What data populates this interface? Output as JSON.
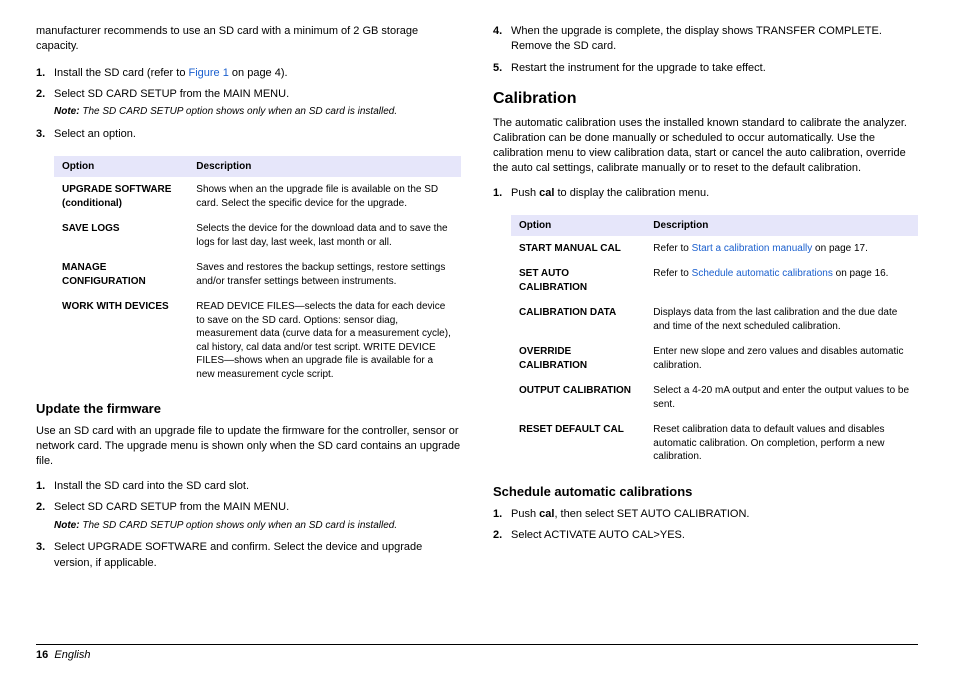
{
  "colors": {
    "table_header_bg": "#e6e6fa",
    "link": "#1a5fce"
  },
  "left": {
    "intro": "manufacturer recommends to use an SD card with a minimum of 2 GB storage capacity.",
    "list1": {
      "i1_pre": "Install the SD card (refer to ",
      "i1_link": "Figure 1",
      "i1_post": " on page 4).",
      "i2": "Select SD CARD SETUP from the MAIN MENU.",
      "note_label": "Note:",
      "note_text": " The SD CARD SETUP option shows only when an SD card is installed.",
      "i3": "Select an option."
    },
    "table1": {
      "h1": "Option",
      "h2": "Description",
      "r1o": "UPGRADE SOFTWARE (conditional)",
      "r1d": "Shows when an the upgrade file is available on the SD card. Select the specific device for the upgrade.",
      "r2o": "SAVE LOGS",
      "r2d": "Selects the device for the download data and to save the logs for last day, last week, last month or all.",
      "r3o": "MANAGE CONFIGURATION",
      "r3d": "Saves and restores the backup settings, restore settings and/or transfer settings between instruments.",
      "r4o": "WORK WITH DEVICES",
      "r4d": "READ DEVICE FILES—selects the data for each device to save on the SD card. Options: sensor diag, measurement data (curve data for a measurement cycle), cal history, cal data and/or test script. WRITE DEVICE FILES—shows when an upgrade file is available for a new measurement cycle script."
    },
    "h2a": "Update the firmware",
    "p2": "Use an SD card with an upgrade file to update the firmware for the controller, sensor or network card. The upgrade menu is shown only when the SD card contains an upgrade file.",
    "list2": {
      "i1": "Install the SD card into the SD card slot.",
      "i2": "Select SD CARD SETUP from the MAIN MENU.",
      "note_label": "Note:",
      "note_text": " The SD CARD SETUP option shows only when an SD card is installed.",
      "i3": "Select UPGRADE SOFTWARE and confirm. Select the device and upgrade version, if applicable."
    }
  },
  "right": {
    "list1": {
      "i4": "When the upgrade is complete, the display shows TRANSFER COMPLETE. Remove the SD card.",
      "i5": "Restart the instrument for the upgrade to take effect."
    },
    "h1": "Calibration",
    "p1": "The automatic calibration uses the installed known standard to calibrate the analyzer. Calibration can be done manually or scheduled to occur automatically. Use the calibration menu to view calibration data, start or cancel the auto calibration, override the auto cal settings, calibrate manually or to reset to the default calibration.",
    "list2": {
      "i1_pre": "Push ",
      "i1_b": "cal",
      "i1_post": " to display the calibration menu."
    },
    "table2": {
      "h1": "Option",
      "h2": "Description",
      "r1o": "START MANUAL CAL",
      "r1d_pre": "Refer to ",
      "r1d_link": "Start a calibration manually",
      "r1d_post": " on page 17.",
      "r2o": "SET AUTO CALIBRATION",
      "r2d_pre": "Refer to ",
      "r2d_link": "Schedule automatic calibrations",
      "r2d_post": " on page 16.",
      "r3o": "CALIBRATION DATA",
      "r3d": "Displays data from the last calibration and the due date and time of the next scheduled calibration.",
      "r4o": "OVERRIDE CALIBRATION",
      "r4d": "Enter new slope and zero values and disables automatic calibration.",
      "r5o": "OUTPUT CALIBRATION",
      "r5d": "Select a 4-20 mA output and enter the output values to be sent.",
      "r6o": "RESET DEFAULT CAL",
      "r6d": "Reset calibration data to default values and disables automatic calibration. On completion, perform a new calibration."
    },
    "h2b": "Schedule automatic calibrations",
    "list3": {
      "i1_pre": "Push ",
      "i1_b": "cal",
      "i1_post": ", then select SET AUTO CALIBRATION.",
      "i2": "Select ACTIVATE AUTO CAL>YES."
    }
  },
  "footer": {
    "page": "16",
    "lang": "English"
  }
}
